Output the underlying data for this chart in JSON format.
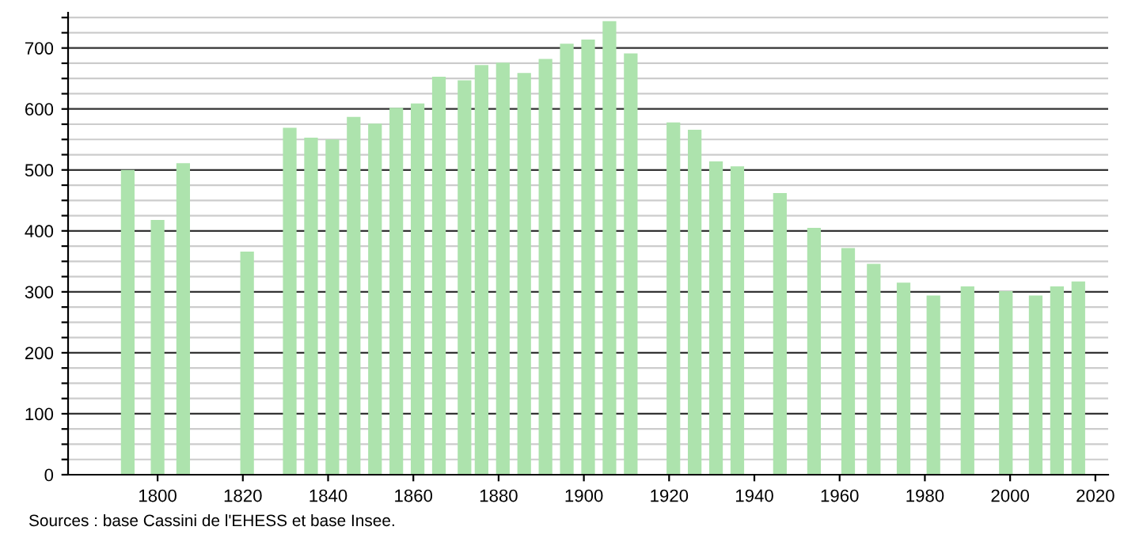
{
  "chart_data": {
    "type": "bar",
    "x": [
      1793,
      1800,
      1806,
      1821,
      1831,
      1836,
      1841,
      1846,
      1851,
      1856,
      1861,
      1866,
      1872,
      1876,
      1881,
      1886,
      1891,
      1896,
      1901,
      1906,
      1911,
      1921,
      1926,
      1931,
      1936,
      1946,
      1954,
      1962,
      1968,
      1975,
      1982,
      1990,
      1999,
      2006,
      2011,
      2016
    ],
    "values": [
      500,
      418,
      511,
      366,
      569,
      553,
      550,
      587,
      576,
      602,
      609,
      653,
      647,
      672,
      676,
      659,
      682,
      707,
      714,
      744,
      691,
      578,
      566,
      514,
      506,
      462,
      405,
      372,
      346,
      315,
      294,
      309,
      301,
      294,
      309,
      317
    ],
    "color": "#ade3ad",
    "xlim": [
      1779,
      2023
    ],
    "xticks": [
      1800,
      1820,
      1840,
      1860,
      1880,
      1900,
      1920,
      1940,
      1960,
      1980,
      2000,
      2020
    ],
    "ylim": [
      0,
      758
    ],
    "yticks": [
      0,
      {
        "value": 25,
        "label": null
      },
      {
        "value": 50,
        "label": null
      },
      {
        "value": 75,
        "label": null
      },
      100,
      {
        "value": 125,
        "label": null
      },
      {
        "value": 150,
        "label": null
      },
      {
        "value": 175,
        "label": null
      },
      200,
      {
        "value": 225,
        "label": null
      },
      {
        "value": 250,
        "label": null
      },
      {
        "value": 275,
        "label": null
      },
      300,
      {
        "value": 325,
        "label": null
      },
      {
        "value": 350,
        "label": null
      },
      {
        "value": 375,
        "label": null
      },
      400,
      {
        "value": 425,
        "label": null
      },
      {
        "value": 450,
        "label": null
      },
      {
        "value": 475,
        "label": null
      },
      500,
      {
        "value": 525,
        "label": null
      },
      {
        "value": 550,
        "label": null
      },
      {
        "value": 575,
        "label": null
      },
      600,
      {
        "value": 625,
        "label": null
      },
      {
        "value": 650,
        "label": null
      },
      {
        "value": 675,
        "label": null
      },
      700,
      {
        "value": 725,
        "label": null
      },
      {
        "value": 750,
        "label": null
      }
    ],
    "grid": "y",
    "annotations": [
      "Sources : base Cassini de l'EHESS et base Insee."
    ]
  }
}
